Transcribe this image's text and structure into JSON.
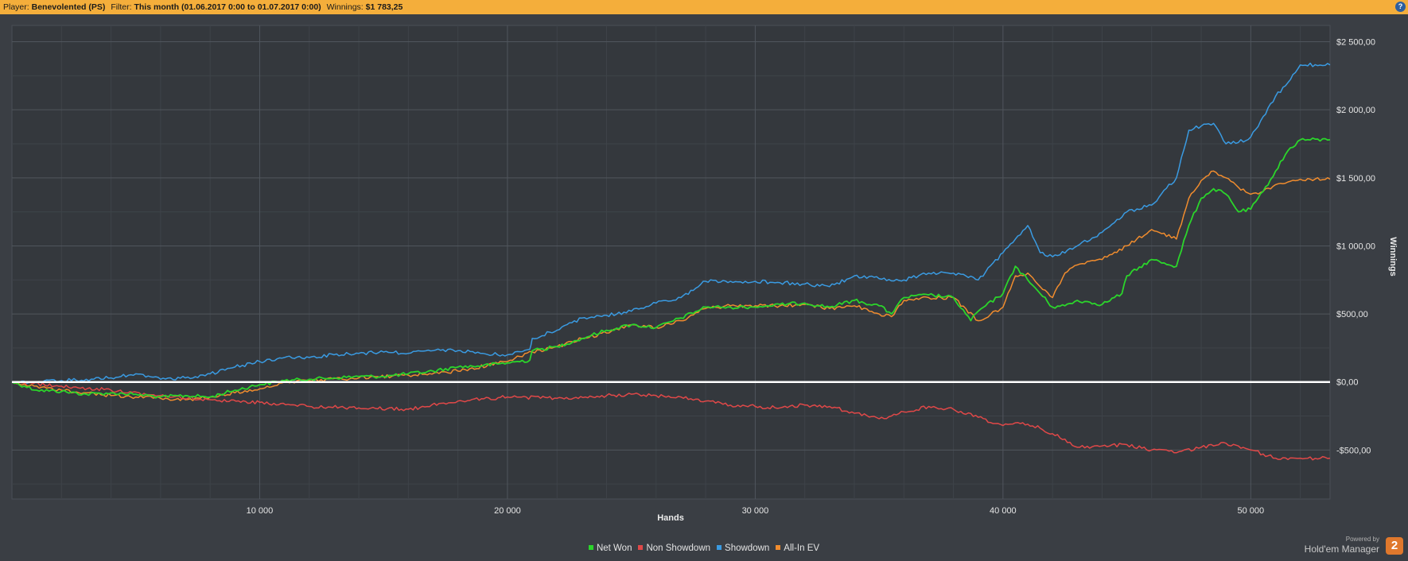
{
  "header": {
    "player_label": "Player:",
    "player_name": "Benevolented (PS)",
    "filter_label": "Filter:",
    "filter_value": "This month (01.06.2017 0:00 to 01.07.2017 0:00)",
    "winnings_label": "Winnings:",
    "winnings_value": "$1 783,25",
    "help_icon": "?"
  },
  "chart_data": {
    "type": "line",
    "xlabel": "Hands",
    "ylabel": "Winnings",
    "xlim": [
      0,
      53200
    ],
    "ylim": [
      -860,
      2620
    ],
    "x_ticks": [
      10000,
      20000,
      30000,
      40000,
      50000
    ],
    "x_tick_labels": [
      "10 000",
      "20 000",
      "30 000",
      "40 000",
      "50 000"
    ],
    "y_ticks": [
      -500,
      0,
      500,
      1000,
      1500,
      2000,
      2500
    ],
    "y_tick_labels": [
      "-$500,00",
      "$0,00",
      "$500,00",
      "$1 000,00",
      "$1 500,00",
      "$2 000,00",
      "$2 500,00"
    ],
    "grid": true,
    "zero_line": true,
    "legend_position": "bottom",
    "background_color": "#34383d",
    "series": [
      {
        "name": "Net Won",
        "color": "#2bd52b",
        "x": [
          0,
          500,
          1000,
          2000,
          3000,
          4000,
          5000,
          6000,
          7000,
          8000,
          9000,
          10000,
          11000,
          12000,
          13000,
          14000,
          15000,
          16000,
          17000,
          18000,
          19000,
          20000,
          20900,
          21000,
          22000,
          23000,
          24000,
          25000,
          26000,
          27000,
          28000,
          29000,
          30000,
          31000,
          32000,
          33000,
          34000,
          35000,
          35500,
          36000,
          37000,
          38000,
          38700,
          39000,
          40000,
          40500,
          41000,
          41500,
          42000,
          42500,
          43000,
          44000,
          44800,
          45000,
          46000,
          47000,
          47500,
          48000,
          48500,
          49000,
          49500,
          50000,
          50500,
          51000,
          51500,
          52000,
          53200
        ],
        "y": [
          0,
          -30,
          -60,
          -70,
          -90,
          -80,
          -90,
          -110,
          -100,
          -110,
          -60,
          -20,
          10,
          20,
          30,
          40,
          40,
          60,
          80,
          110,
          120,
          140,
          160,
          230,
          260,
          320,
          380,
          420,
          400,
          470,
          550,
          550,
          550,
          570,
          580,
          550,
          600,
          560,
          500,
          620,
          640,
          620,
          450,
          520,
          650,
          850,
          750,
          650,
          550,
          560,
          600,
          570,
          650,
          780,
          900,
          850,
          1150,
          1350,
          1420,
          1380,
          1250,
          1270,
          1400,
          1550,
          1700,
          1780,
          1780
        ]
      },
      {
        "name": "Non Showdown",
        "color": "#e04848",
        "x": [
          0,
          2000,
          4000,
          6000,
          8000,
          10000,
          12000,
          14000,
          16000,
          18000,
          20000,
          22000,
          24000,
          25000,
          26000,
          27000,
          28000,
          29000,
          30000,
          31000,
          32000,
          33000,
          34000,
          35000,
          35500,
          36000,
          37000,
          38000,
          39000,
          40000,
          40500,
          41000,
          41500,
          42000,
          42500,
          43000,
          44000,
          45000,
          46000,
          47000,
          48000,
          48500,
          49000,
          49500,
          50000,
          51000,
          52000,
          53200
        ],
        "y": [
          0,
          -30,
          -60,
          -100,
          -130,
          -150,
          -180,
          -190,
          -200,
          -140,
          -110,
          -120,
          -100,
          -90,
          -100,
          -110,
          -140,
          -170,
          -180,
          -190,
          -170,
          -180,
          -230,
          -270,
          -250,
          -220,
          -180,
          -200,
          -260,
          -320,
          -300,
          -310,
          -340,
          -380,
          -420,
          -480,
          -470,
          -460,
          -500,
          -520,
          -480,
          -470,
          -450,
          -470,
          -500,
          -560,
          -560,
          -560
        ]
      },
      {
        "name": "Showdown",
        "color": "#3a9be2",
        "x": [
          0,
          1000,
          2000,
          3000,
          4000,
          5000,
          6000,
          7000,
          8000,
          9000,
          10000,
          11000,
          12000,
          13000,
          14000,
          15000,
          16000,
          17000,
          18000,
          19000,
          20000,
          20900,
          21000,
          22000,
          23000,
          24000,
          25000,
          26000,
          27000,
          28000,
          29000,
          30000,
          31000,
          32000,
          33000,
          34000,
          35000,
          36000,
          37000,
          38000,
          39000,
          40000,
          40500,
          41000,
          41500,
          42000,
          43000,
          44000,
          45000,
          46000,
          47000,
          47500,
          48000,
          48500,
          49000,
          49500,
          50000,
          50500,
          51000,
          51500,
          52000,
          53200
        ],
        "y": [
          0,
          0,
          10,
          20,
          30,
          60,
          20,
          30,
          60,
          110,
          150,
          180,
          180,
          200,
          210,
          220,
          210,
          230,
          230,
          210,
          200,
          240,
          320,
          380,
          470,
          490,
          520,
          580,
          620,
          740,
          740,
          740,
          730,
          720,
          700,
          780,
          760,
          750,
          800,
          800,
          750,
          950,
          1050,
          1150,
          950,
          920,
          1000,
          1100,
          1250,
          1300,
          1500,
          1850,
          1880,
          1900,
          1750,
          1760,
          1800,
          1950,
          2100,
          2200,
          2330,
          2330
        ]
      },
      {
        "name": "All-In EV",
        "color": "#f08c2e",
        "x": [
          0,
          1000,
          2000,
          3000,
          4000,
          5000,
          6000,
          7000,
          8000,
          9000,
          10000,
          11000,
          12000,
          14000,
          16000,
          18000,
          20000,
          21000,
          22000,
          23000,
          24000,
          25000,
          26000,
          27000,
          28000,
          29000,
          30000,
          31000,
          32000,
          33000,
          34000,
          35000,
          35500,
          36000,
          37000,
          38000,
          39000,
          40000,
          40500,
          41000,
          41500,
          42000,
          42500,
          43000,
          44000,
          45000,
          46000,
          47000,
          47500,
          48000,
          48500,
          49000,
          49500,
          50000,
          50500,
          51000,
          51500,
          52000,
          53200
        ],
        "y": [
          0,
          -30,
          -60,
          -80,
          -100,
          -110,
          -120,
          -130,
          -110,
          -80,
          -50,
          0,
          10,
          30,
          50,
          80,
          150,
          220,
          260,
          320,
          360,
          420,
          400,
          450,
          540,
          560,
          560,
          560,
          570,
          540,
          560,
          500,
          480,
          600,
          620,
          620,
          450,
          550,
          780,
          800,
          700,
          620,
          800,
          860,
          900,
          1000,
          1120,
          1050,
          1350,
          1480,
          1550,
          1500,
          1430,
          1380,
          1400,
          1450,
          1470,
          1490,
          1490
        ]
      }
    ]
  },
  "legend": [
    {
      "label": "Net Won",
      "color": "#2bd52b"
    },
    {
      "label": "Non Showdown",
      "color": "#e04848"
    },
    {
      "label": "Showdown",
      "color": "#3a9be2"
    },
    {
      "label": "All-In EV",
      "color": "#f08c2e"
    }
  ],
  "branding": {
    "powered_by": "Powered by",
    "product": "Hold'em Manager",
    "logo_text": "2"
  }
}
